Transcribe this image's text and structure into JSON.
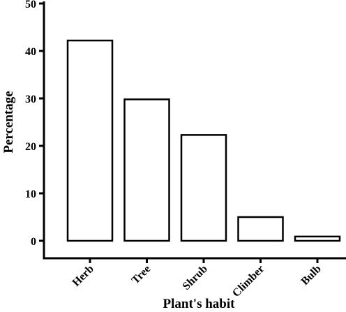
{
  "chart_data": {
    "type": "bar",
    "categories": [
      "Herb",
      "Tree",
      "Shrub",
      "Climber",
      "Bulb"
    ],
    "values": [
      42.2,
      29.8,
      22.3,
      5.0,
      0.9
    ],
    "title": "",
    "xlabel": "Plant's habit",
    "ylabel": "Percentage",
    "ylim": [
      0,
      50
    ],
    "yticks": [
      0,
      10,
      20,
      30,
      40,
      50
    ],
    "grid": false,
    "legend": "none",
    "bar_fill": "#ffffff",
    "bar_stroke": "#000000"
  }
}
